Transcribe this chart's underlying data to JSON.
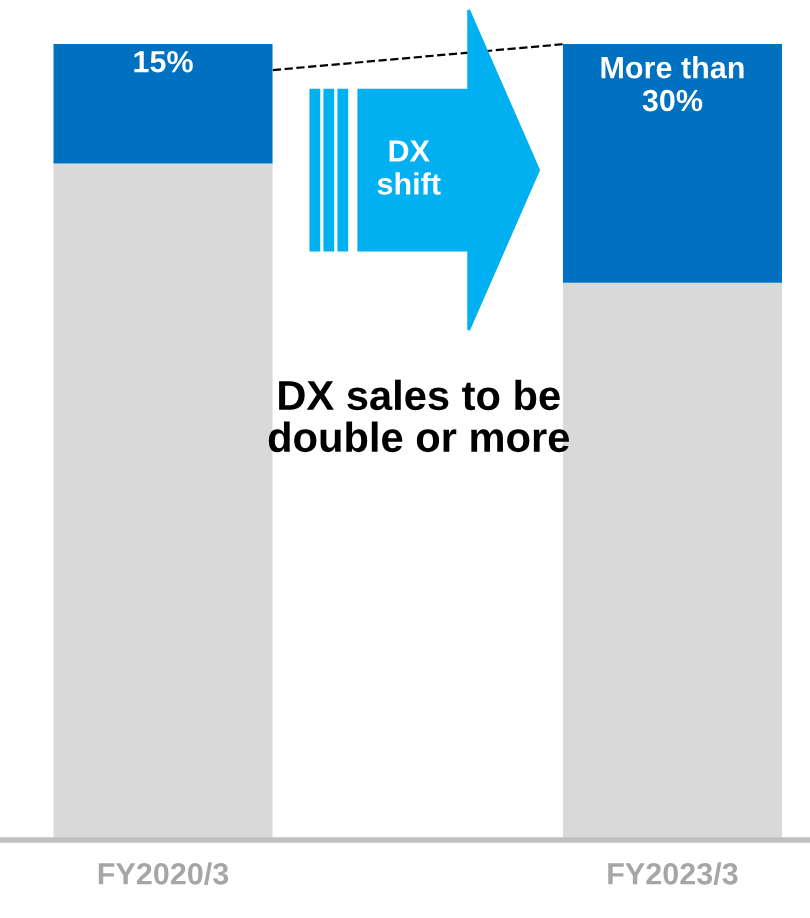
{
  "chart_data": {
    "type": "bar",
    "stacked": true,
    "categories": [
      "FY2020/3",
      "FY2023/3"
    ],
    "series": [
      {
        "color": "#d9d9d9",
        "values": [
          85,
          70
        ]
      },
      {
        "color": "#0070c0",
        "values": [
          15,
          30
        ],
        "value_labels": [
          "15%",
          "More than\n30%"
        ]
      }
    ],
    "annotations": [
      "DX\nshift",
      "DX sales to be\ndouble or more"
    ],
    "grid": false,
    "legend": false
  }
}
